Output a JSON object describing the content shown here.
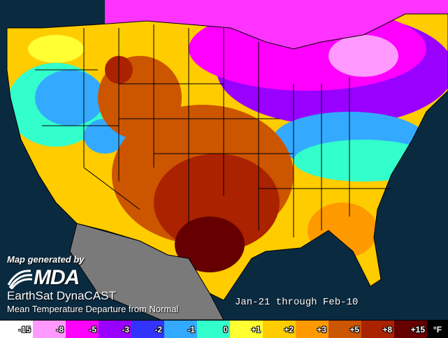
{
  "map": {
    "caption_generated": "Map generated by",
    "logo_text": "MDA",
    "product_name": "EarthSat DynaCAST",
    "product_desc": "Mean Temperature Departure from Normal",
    "period": "Jan-21 through Feb-10"
  },
  "legend": {
    "unit": "°F",
    "bins": [
      {
        "label": "-15",
        "color": "#ffffff"
      },
      {
        "label": "-8",
        "color": "#ff99ff"
      },
      {
        "label": "-5",
        "color": "#ff00ff"
      },
      {
        "label": "-3",
        "color": "#9900ff"
      },
      {
        "label": "-2",
        "color": "#3333ff"
      },
      {
        "label": "-1",
        "color": "#33aaff"
      },
      {
        "label": "0",
        "color": "#33ffcc"
      },
      {
        "label": "+1",
        "color": "#ffff33"
      },
      {
        "label": "+2",
        "color": "#ffcc00"
      },
      {
        "label": "+3",
        "color": "#ff9900"
      },
      {
        "label": "+5",
        "color": "#cc5500"
      },
      {
        "label": "+8",
        "color": "#aa2200"
      },
      {
        "label": "+15",
        "color": "#660000"
      }
    ]
  },
  "colors": {
    "ocean": "#0a2a40",
    "mexico": "#7a7a7a",
    "border": "#000000"
  }
}
